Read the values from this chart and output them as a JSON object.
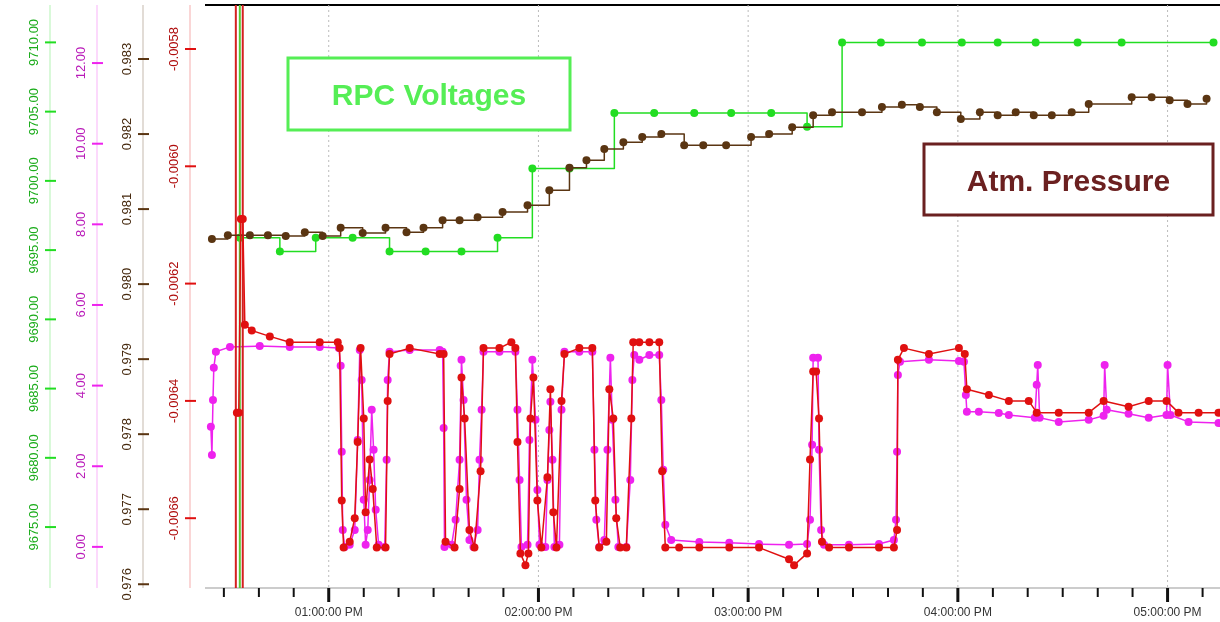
{
  "chart_data": [
    {
      "type": "line",
      "marker": "circle",
      "grid": "x",
      "annotations": [
        "RPC Voltages"
      ],
      "xlim": [
        12.41,
        17.25
      ],
      "xticks": [
        {
          "value": 12.5,
          "label": null
        },
        {
          "value": 12.667,
          "label": null
        },
        {
          "value": 12.833,
          "label": null
        },
        {
          "value": 13,
          "label": "01:00:00 PM"
        },
        {
          "value": 13.167,
          "label": null
        },
        {
          "value": 13.333,
          "label": null
        },
        {
          "value": 13.5,
          "label": null
        },
        {
          "value": 13.667,
          "label": null
        },
        {
          "value": 13.833,
          "label": null
        },
        {
          "value": 14,
          "label": "02:00:00 PM"
        },
        {
          "value": 14.167,
          "label": null
        },
        {
          "value": 14.333,
          "label": null
        },
        {
          "value": 14.5,
          "label": null
        },
        {
          "value": 14.667,
          "label": null
        },
        {
          "value": 14.833,
          "label": null
        },
        {
          "value": 15,
          "label": "03:00:00 PM"
        },
        {
          "value": 15.167,
          "label": null
        },
        {
          "value": 15.333,
          "label": null
        },
        {
          "value": 15.5,
          "label": null
        },
        {
          "value": 15.667,
          "label": null
        },
        {
          "value": 15.833,
          "label": null
        },
        {
          "value": 16,
          "label": "04:00:00 PM"
        },
        {
          "value": 16.167,
          "label": null
        },
        {
          "value": 16.333,
          "label": null
        },
        {
          "value": 16.5,
          "label": null
        },
        {
          "value": 16.667,
          "label": null
        },
        {
          "value": 16.833,
          "label": null
        },
        {
          "value": 17,
          "label": "05:00:00 PM"
        },
        {
          "value": 17.167,
          "label": null
        }
      ],
      "ylim": [
        9670.6,
        9712.7
      ],
      "yticks": [
        {
          "value": 9675,
          "label": "9675.00"
        },
        {
          "value": 9680,
          "label": "9680.00"
        },
        {
          "value": 9685,
          "label": "9685.00"
        },
        {
          "value": 9690,
          "label": "9690.00"
        },
        {
          "value": 9695,
          "label": "9695.00"
        },
        {
          "value": 9700,
          "label": "9700.00"
        },
        {
          "value": 9705,
          "label": "9705.00"
        },
        {
          "value": 9710,
          "label": "9710.00"
        }
      ],
      "y2lim": [
        -1.02,
        13.44
      ],
      "y2ticks": [
        {
          "value": 0,
          "label": "0.00"
        },
        {
          "value": 2,
          "label": "2.00"
        },
        {
          "value": 4,
          "label": "4.00"
        },
        {
          "value": 6,
          "label": "6.00"
        },
        {
          "value": 8,
          "label": "8.00"
        },
        {
          "value": 10,
          "label": "10.00"
        },
        {
          "value": 12,
          "label": "12.00"
        }
      ],
      "ref_lines": [
        {
          "axis": "x",
          "value": 12.557,
          "color": "#d42020"
        },
        {
          "axis": "x",
          "value": 12.59,
          "color": "#d42020"
        },
        {
          "axis": "x",
          "value": 12.576,
          "color": "#55cc33"
        }
      ],
      "series": [
        {
          "type": "step",
          "color": "#22dd22",
          "x": [
            12.576,
            12.767,
            12.938,
            13.114,
            13.29,
            13.462,
            13.633,
            13.805,
            13.971,
            14.148,
            14.362,
            14.552,
            14.743,
            14.919,
            15.11,
            15.281,
            15.448,
            15.633,
            15.829,
            16.019,
            16.19,
            16.371,
            16.571,
            16.781,
            17.219
          ],
          "values": [
            9695.9,
            9694.9,
            9695.9,
            9695.9,
            9694.9,
            9694.9,
            9694.9,
            9695.9,
            9700.9,
            9700.9,
            9704.9,
            9704.9,
            9704.9,
            9704.9,
            9704.9,
            9703.9,
            9710.0,
            9710.0,
            9710.0,
            9710.0,
            9710.0,
            9710.0,
            9710.0,
            9710.0,
            9710.0
          ]
        },
        {
          "type": "line",
          "axis": "y2",
          "color": "#ee22ee",
          "x": [
            12.438,
            12.443,
            12.448,
            12.452,
            12.462,
            12.529,
            12.671,
            12.814,
            12.957,
            13.048,
            13.057,
            13.062,
            13.067,
            13.076,
            13.1,
            13.124,
            13.138,
            13.148,
            13.157,
            13.167,
            13.176,
            13.186,
            13.195,
            13.205,
            13.214,
            13.224,
            13.238,
            13.267,
            13.276,
            13.281,
            13.29,
            13.386,
            13.529,
            13.543,
            13.548,
            13.552,
            13.586,
            13.605,
            13.624,
            13.633,
            13.643,
            13.657,
            13.671,
            13.69,
            13.71,
            13.719,
            13.729,
            13.738,
            13.814,
            13.89,
            13.9,
            13.91,
            13.919,
            13.948,
            13.957,
            13.971,
            13.986,
            13.995,
            14.005,
            14.033,
            14.043,
            14.052,
            14.057,
            14.067,
            14.076,
            14.1,
            14.11,
            14.124,
            14.195,
            14.257,
            14.267,
            14.276,
            14.29,
            14.314,
            14.329,
            14.343,
            14.352,
            14.367,
            14.381,
            14.419,
            14.438,
            14.448,
            14.457,
            14.481,
            14.529,
            14.576,
            14.586,
            14.595,
            14.605,
            14.633,
            14.767,
            14.91,
            15.052,
            15.195,
            15.281,
            15.295,
            15.305,
            15.31,
            15.333,
            15.338,
            15.348,
            15.362,
            15.481,
            15.624,
            15.695,
            15.705,
            15.71,
            15.714,
            15.724,
            15.862,
            16.005,
            16.029,
            16.038,
            16.043,
            16.1,
            16.195,
            16.243,
            16.367,
            16.376,
            16.381,
            16.39,
            16.481,
            16.624,
            16.695,
            16.7,
            16.71,
            16.814,
            16.91,
            16.995,
            17.0,
            17.014,
            17.1,
            17.243
          ],
          "values": [
            2.98,
            2.28,
            3.64,
            4.44,
            4.84,
            4.96,
            4.98,
            4.96,
            4.96,
            4.93,
            4.49,
            2.36,
            0.42,
            0.0,
            0.05,
            0.42,
            2.65,
            4.88,
            4.14,
            1.17,
            0.05,
            0.42,
            1.66,
            3.4,
            2.41,
            0.92,
            0.05,
            0.0,
            2.16,
            4.14,
            4.84,
            4.88,
            4.88,
            4.84,
            2.95,
            0.0,
            0.05,
            0.67,
            2.16,
            4.64,
            3.64,
            1.17,
            0.17,
            0.0,
            0.42,
            2.16,
            3.4,
            4.84,
            4.84,
            4.84,
            3.4,
            1.66,
            0.0,
            0.05,
            2.65,
            4.64,
            3.15,
            1.41,
            0.05,
            0.0,
            1.66,
            2.9,
            3.6,
            2.16,
            0.0,
            0.05,
            3.4,
            4.84,
            4.84,
            4.84,
            2.41,
            0.67,
            0.0,
            0.17,
            2.41,
            4.69,
            3.15,
            1.17,
            0.0,
            0.0,
            1.66,
            4.14,
            4.76,
            4.64,
            4.76,
            4.76,
            3.64,
            1.91,
            0.55,
            0.17,
            0.12,
            0.1,
            0.07,
            0.05,
            0.07,
            0.67,
            2.53,
            4.69,
            4.69,
            2.41,
            0.42,
            0.05,
            0.05,
            0.07,
            0.17,
            0.67,
            2.36,
            4.26,
            4.59,
            4.64,
            4.61,
            4.59,
            3.77,
            3.35,
            3.35,
            3.32,
            3.27,
            3.2,
            4.02,
            4.51,
            3.2,
            3.1,
            3.15,
            3.25,
            4.51,
            3.4,
            3.3,
            3.2,
            3.27,
            4.51,
            3.27,
            3.1,
            3.07
          ]
        }
      ]
    },
    {
      "type": "line",
      "marker": "circle",
      "tick_labels": "y",
      "annotations": [
        "Atm. Pressure"
      ],
      "xlim": [
        12.41,
        17.25
      ],
      "ylim": [
        0.97595,
        0.98372
      ],
      "yticks": [
        0.976,
        0.977,
        0.978,
        0.979,
        {
          "value": 0.98,
          "label": "0.980"
        },
        0.981,
        0.982,
        0.983
      ],
      "y2lim": [
        -0.006719,
        -0.005725
      ],
      "y2ticks": [
        -0.0066,
        -0.0064,
        -0.0062,
        {
          "value": -0.006,
          "label": "-0.0060"
        },
        -0.0058
      ],
      "series": [
        {
          "type": "step",
          "color": "#5a3512",
          "x": [
            12.443,
            12.519,
            12.624,
            12.71,
            12.795,
            12.886,
            12.971,
            13.057,
            13.162,
            13.271,
            13.371,
            13.452,
            13.543,
            13.624,
            13.71,
            13.829,
            13.948,
            14.052,
            14.148,
            14.229,
            14.314,
            14.405,
            14.495,
            14.586,
            14.695,
            14.786,
            14.895,
            15.014,
            15.1,
            15.21,
            15.31,
            15.4,
            15.543,
            15.638,
            15.733,
            15.819,
            15.9,
            16.014,
            16.105,
            16.19,
            16.276,
            16.362,
            16.448,
            16.543,
            16.624,
            16.829,
            16.924,
            17.01,
            17.095,
            17.186
          ],
          "values": [
            0.9806,
            0.98065,
            0.98065,
            0.98065,
            0.98064,
            0.98069,
            0.98064,
            0.98075,
            0.98068,
            0.98075,
            0.98069,
            0.98075,
            0.98085,
            0.98085,
            0.98089,
            0.98096,
            0.98105,
            0.98125,
            0.98155,
            0.98165,
            0.9818,
            0.98189,
            0.98196,
            0.982,
            0.98185,
            0.98185,
            0.98185,
            0.98196,
            0.982,
            0.98209,
            0.98225,
            0.98229,
            0.98229,
            0.98236,
            0.98239,
            0.98236,
            0.98229,
            0.9822,
            0.98229,
            0.98225,
            0.98229,
            0.98225,
            0.98225,
            0.98229,
            0.9824,
            0.98249,
            0.98249,
            0.98245,
            0.9824,
            0.98247
          ]
        },
        {
          "type": "line",
          "axis": "y2",
          "color": "#e01010",
          "x": [
            12.562,
            12.571,
            12.581,
            12.59,
            12.6,
            12.633,
            12.719,
            12.814,
            12.957,
            13.043,
            13.052,
            13.062,
            13.071,
            13.1,
            13.124,
            13.138,
            13.152,
            13.167,
            13.176,
            13.195,
            13.21,
            13.229,
            13.271,
            13.281,
            13.29,
            13.386,
            13.529,
            13.548,
            13.557,
            13.6,
            13.624,
            13.633,
            13.648,
            13.671,
            13.695,
            13.724,
            13.738,
            13.814,
            13.871,
            13.89,
            13.9,
            13.914,
            13.938,
            13.952,
            13.962,
            13.976,
            13.995,
            14.014,
            14.043,
            14.057,
            14.071,
            14.086,
            14.11,
            14.124,
            14.195,
            14.257,
            14.271,
            14.29,
            14.324,
            14.338,
            14.357,
            14.371,
            14.39,
            14.419,
            14.443,
            14.452,
            14.481,
            14.529,
            14.576,
            14.59,
            14.605,
            14.671,
            14.767,
            14.91,
            15.052,
            15.195,
            15.219,
            15.281,
            15.295,
            15.31,
            15.324,
            15.338,
            15.352,
            15.386,
            15.481,
            15.624,
            15.695,
            15.71,
            15.714,
            15.743,
            15.862,
            16.005,
            16.033,
            16.043,
            16.148,
            16.243,
            16.338,
            16.376,
            16.481,
            16.624,
            16.695,
            16.814,
            16.91,
            16.995,
            17.052,
            17.148,
            17.243
          ],
          "values": [
            -0.00642,
            -0.00642,
            -0.00609,
            -0.00609,
            -0.00627,
            -0.00628,
            -0.00629,
            -0.0063,
            -0.0063,
            -0.0063,
            -0.00631,
            -0.00657,
            -0.00665,
            -0.00664,
            -0.0066,
            -0.00647,
            -0.00631,
            -0.00643,
            -0.00659,
            -0.0065,
            -0.00655,
            -0.00665,
            -0.00665,
            -0.0064,
            -0.00632,
            -0.00631,
            -0.00632,
            -0.00632,
            -0.00664,
            -0.00665,
            -0.00655,
            -0.00636,
            -0.00643,
            -0.00662,
            -0.00665,
            -0.00652,
            -0.00631,
            -0.00631,
            -0.0063,
            -0.00631,
            -0.00647,
            -0.00666,
            -0.00668,
            -0.00666,
            -0.00643,
            -0.00636,
            -0.00657,
            -0.00665,
            -0.00653,
            -0.00638,
            -0.00659,
            -0.00665,
            -0.0064,
            -0.00632,
            -0.00631,
            -0.00631,
            -0.00657,
            -0.00665,
            -0.00664,
            -0.00638,
            -0.00643,
            -0.0066,
            -0.00665,
            -0.00665,
            -0.00643,
            -0.0063,
            -0.0063,
            -0.0063,
            -0.0063,
            -0.00652,
            -0.00665,
            -0.00665,
            -0.00665,
            -0.00665,
            -0.00665,
            -0.00667,
            -0.00668,
            -0.00666,
            -0.0065,
            -0.00635,
            -0.00635,
            -0.00643,
            -0.00664,
            -0.00665,
            -0.00665,
            -0.00665,
            -0.00665,
            -0.00662,
            -0.00633,
            -0.00631,
            -0.00632,
            -0.00631,
            -0.00632,
            -0.00638,
            -0.00639,
            -0.0064,
            -0.0064,
            -0.00642,
            -0.00642,
            -0.00642,
            -0.0064,
            -0.00641,
            -0.0064,
            -0.0064,
            -0.00642,
            -0.00642,
            -0.00642
          ]
        }
      ]
    }
  ]
}
